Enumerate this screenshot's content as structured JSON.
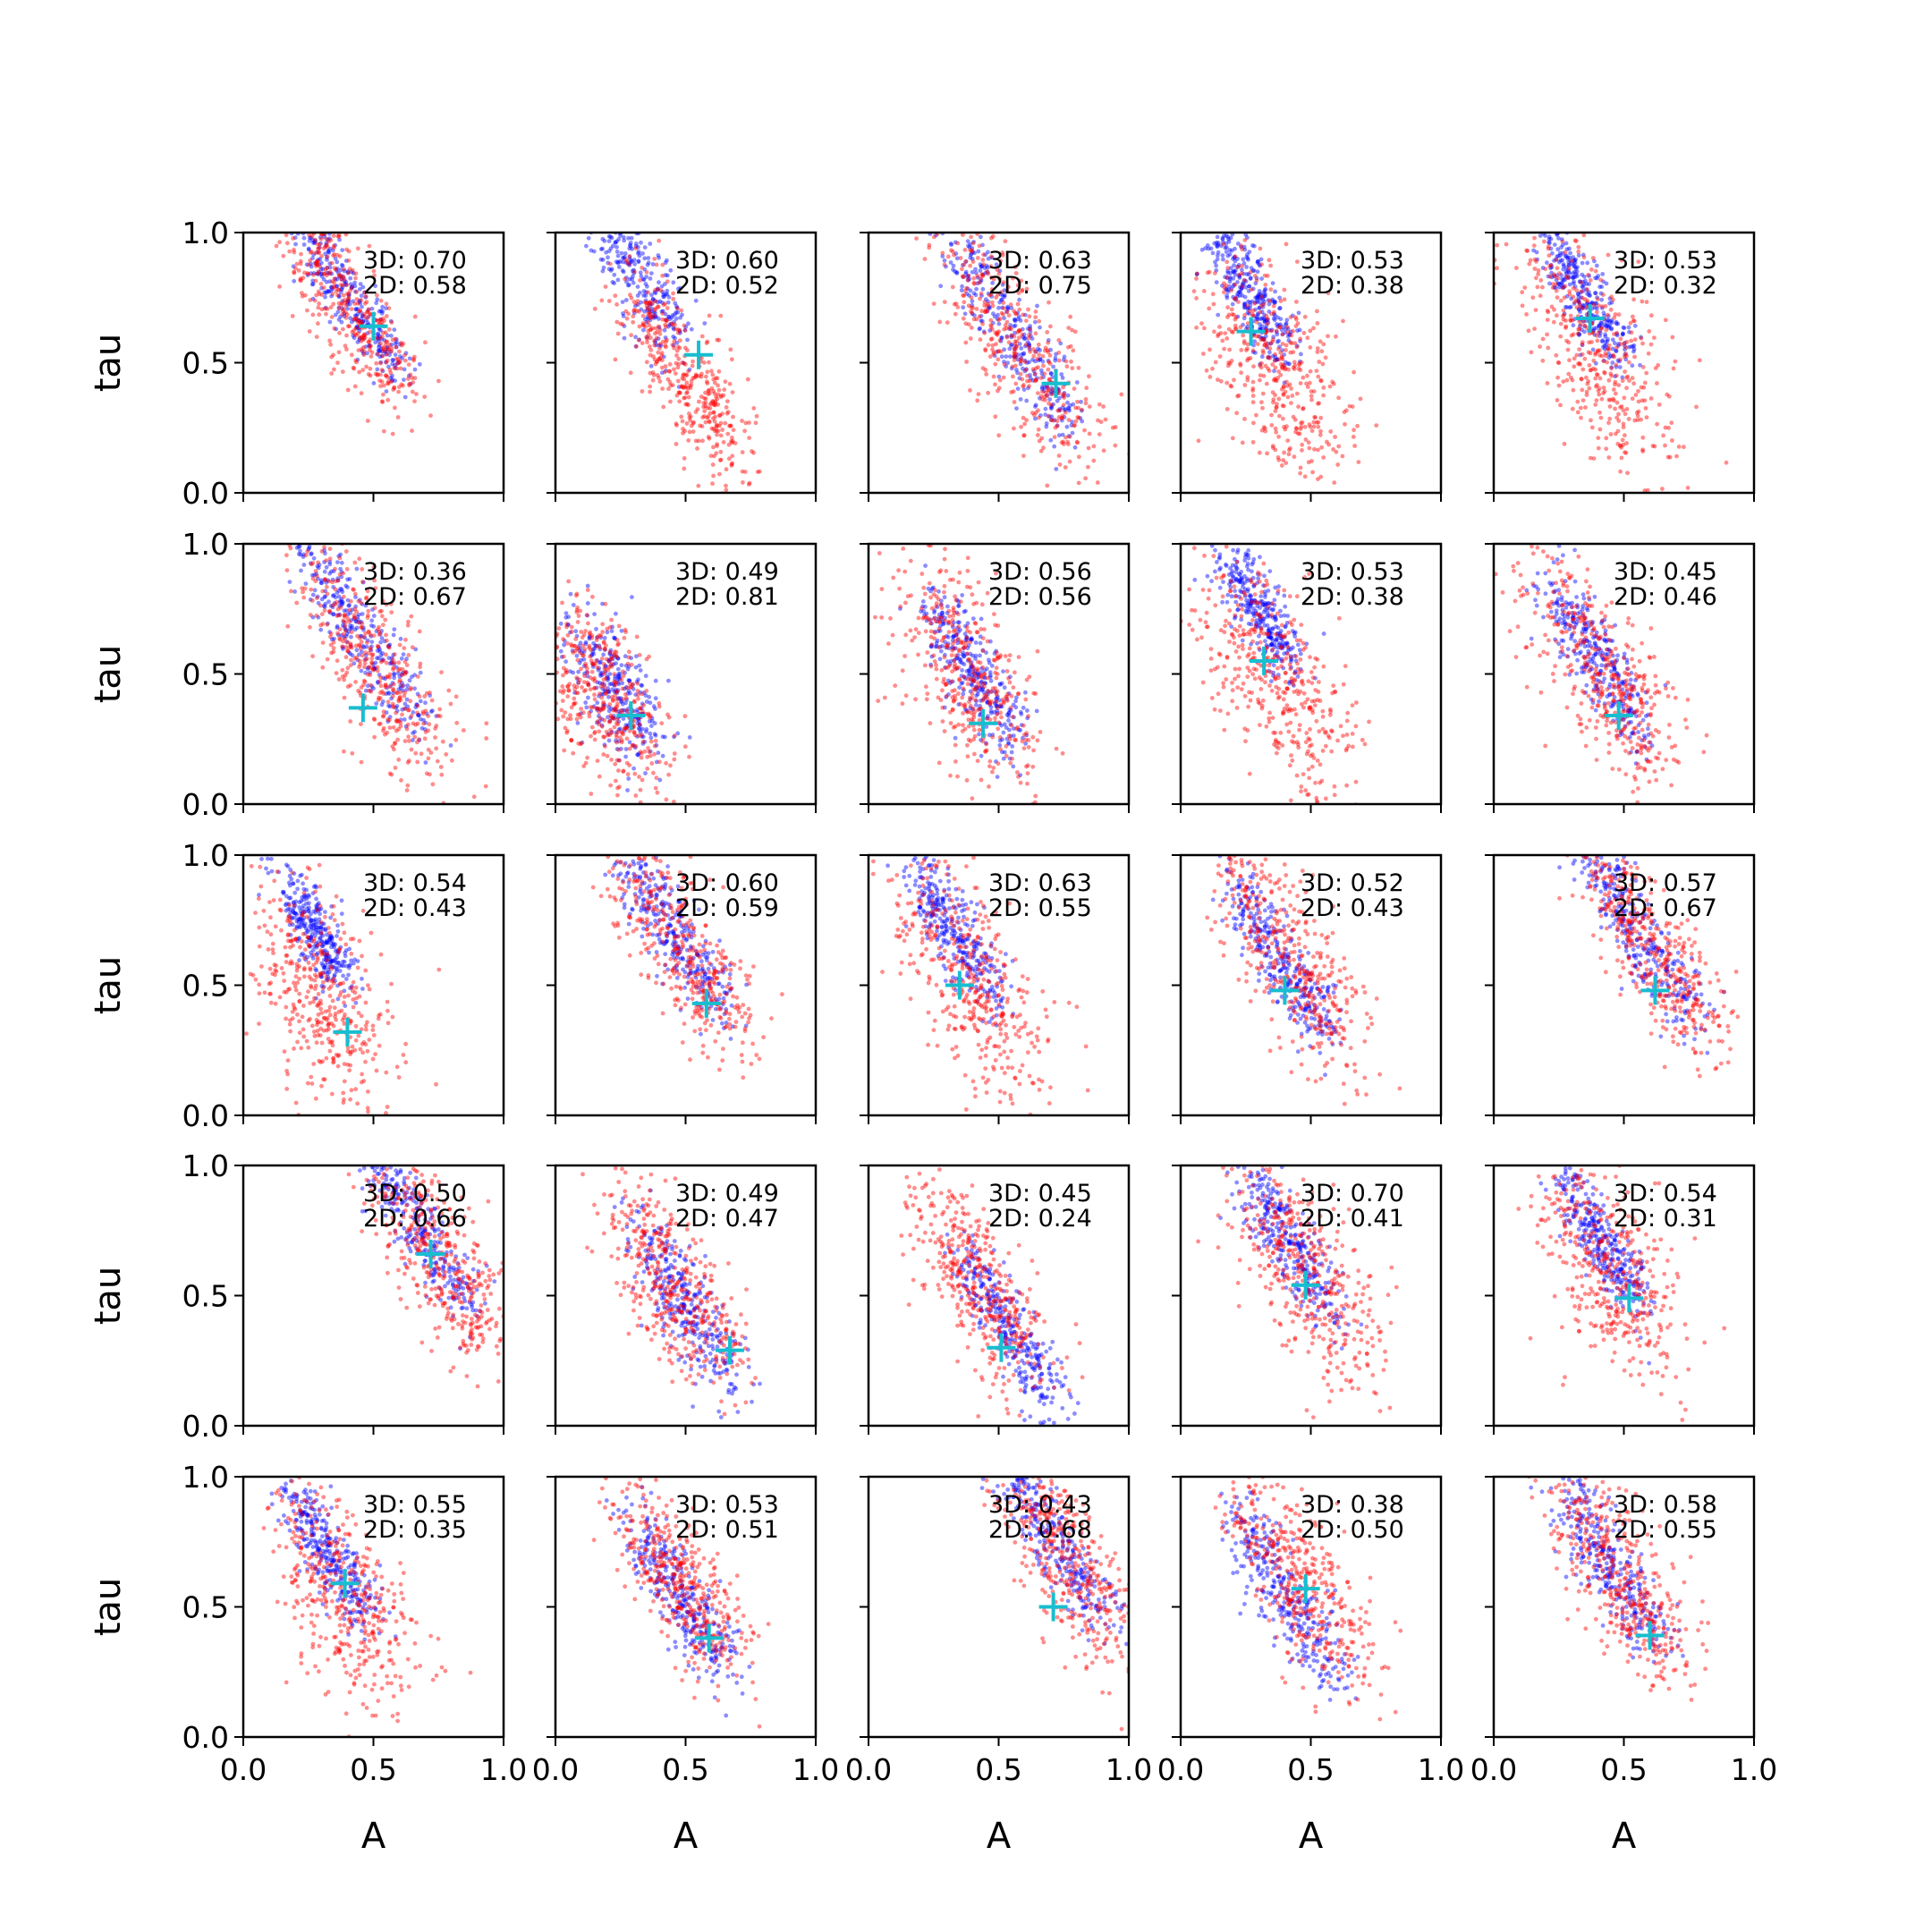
{
  "chart_data": {
    "type": "scatter",
    "layout": {
      "rows": 5,
      "cols": 5
    },
    "xlabel": "A",
    "ylabel": "tau",
    "xlim": [
      0,
      1
    ],
    "ylim": [
      0,
      1
    ],
    "x_ticks": [
      "0.0",
      "0.5",
      "1.0"
    ],
    "y_ticks": [
      "0.0",
      "0.5",
      "1.0"
    ],
    "colors": {
      "series_3d": "#0000ff",
      "series_2d": "#ff0000",
      "marker": "#17becf"
    },
    "panels": [
      {
        "ann": [
          "3D: 0.70",
          "2D: 0.58"
        ],
        "marker": [
          0.5,
          0.64
        ],
        "blue": {
          "a": 0.4,
          "t": 0.75,
          "k": 0.18,
          "sp": 0.06
        },
        "red": {
          "a": 0.42,
          "t": 0.7,
          "k": 0.2,
          "sp": 0.1
        }
      },
      {
        "ann": [
          "3D: 0.60",
          "2D: 0.52"
        ],
        "marker": [
          0.55,
          0.53
        ],
        "blue": {
          "a": 0.3,
          "t": 0.85,
          "k": 0.15,
          "sp": 0.08
        },
        "red": {
          "a": 0.5,
          "t": 0.45,
          "k": 0.18,
          "sp": 0.1
        }
      },
      {
        "ann": [
          "3D: 0.63",
          "2D: 0.75"
        ],
        "marker": [
          0.72,
          0.42
        ],
        "blue": {
          "a": 0.55,
          "t": 0.6,
          "k": 0.22,
          "sp": 0.07
        },
        "red": {
          "a": 0.58,
          "t": 0.55,
          "k": 0.25,
          "sp": 0.12
        }
      },
      {
        "ann": [
          "3D: 0.53",
          "2D: 0.38"
        ],
        "marker": [
          0.27,
          0.62
        ],
        "blue": {
          "a": 0.28,
          "t": 0.75,
          "k": 0.12,
          "sp": 0.06
        },
        "red": {
          "a": 0.35,
          "t": 0.5,
          "k": 0.15,
          "sp": 0.15
        }
      },
      {
        "ann": [
          "3D: 0.53",
          "2D: 0.32"
        ],
        "marker": [
          0.37,
          0.67
        ],
        "blue": {
          "a": 0.35,
          "t": 0.75,
          "k": 0.12,
          "sp": 0.06
        },
        "red": {
          "a": 0.4,
          "t": 0.55,
          "k": 0.15,
          "sp": 0.15
        }
      },
      {
        "ann": [
          "3D: 0.36",
          "2D: 0.67"
        ],
        "marker": [
          0.46,
          0.37
        ],
        "blue": {
          "a": 0.45,
          "t": 0.65,
          "k": 0.22,
          "sp": 0.07
        },
        "red": {
          "a": 0.5,
          "t": 0.55,
          "k": 0.22,
          "sp": 0.12
        }
      },
      {
        "ann": [
          "3D: 0.49",
          "2D: 0.81"
        ],
        "marker": [
          0.29,
          0.34
        ],
        "blue": {
          "a": 0.22,
          "t": 0.45,
          "k": 0.1,
          "sp": 0.09
        },
        "red": {
          "a": 0.2,
          "t": 0.4,
          "k": 0.1,
          "sp": 0.13
        }
      },
      {
        "ann": [
          "3D: 0.56",
          "2D: 0.56"
        ],
        "marker": [
          0.44,
          0.31
        ],
        "blue": {
          "a": 0.4,
          "t": 0.5,
          "k": 0.14,
          "sp": 0.07
        },
        "red": {
          "a": 0.38,
          "t": 0.5,
          "k": 0.14,
          "sp": 0.14
        }
      },
      {
        "ann": [
          "3D: 0.53",
          "2D: 0.38"
        ],
        "marker": [
          0.32,
          0.55
        ],
        "blue": {
          "a": 0.3,
          "t": 0.75,
          "k": 0.12,
          "sp": 0.06
        },
        "red": {
          "a": 0.35,
          "t": 0.5,
          "k": 0.15,
          "sp": 0.15
        }
      },
      {
        "ann": [
          "3D: 0.45",
          "2D: 0.46"
        ],
        "marker": [
          0.48,
          0.34
        ],
        "blue": {
          "a": 0.4,
          "t": 0.55,
          "k": 0.16,
          "sp": 0.07
        },
        "red": {
          "a": 0.42,
          "t": 0.5,
          "k": 0.18,
          "sp": 0.13
        }
      },
      {
        "ann": [
          "3D: 0.54",
          "2D: 0.43"
        ],
        "marker": [
          0.4,
          0.32
        ],
        "blue": {
          "a": 0.28,
          "t": 0.7,
          "k": 0.1,
          "sp": 0.06
        },
        "red": {
          "a": 0.3,
          "t": 0.45,
          "k": 0.12,
          "sp": 0.16
        }
      },
      {
        "ann": [
          "3D: 0.60",
          "2D: 0.59"
        ],
        "marker": [
          0.58,
          0.43
        ],
        "blue": {
          "a": 0.45,
          "t": 0.7,
          "k": 0.18,
          "sp": 0.07
        },
        "red": {
          "a": 0.48,
          "t": 0.65,
          "k": 0.2,
          "sp": 0.11
        }
      },
      {
        "ann": [
          "3D: 0.63",
          "2D: 0.55"
        ],
        "marker": [
          0.35,
          0.5
        ],
        "blue": {
          "a": 0.33,
          "t": 0.7,
          "k": 0.15,
          "sp": 0.07
        },
        "red": {
          "a": 0.38,
          "t": 0.55,
          "k": 0.18,
          "sp": 0.14
        }
      },
      {
        "ann": [
          "3D: 0.52",
          "2D: 0.43"
        ],
        "marker": [
          0.4,
          0.48
        ],
        "blue": {
          "a": 0.38,
          "t": 0.6,
          "k": 0.18,
          "sp": 0.07
        },
        "red": {
          "a": 0.42,
          "t": 0.6,
          "k": 0.2,
          "sp": 0.12
        }
      },
      {
        "ann": [
          "3D: 0.57",
          "2D: 0.67"
        ],
        "marker": [
          0.62,
          0.48
        ],
        "blue": {
          "a": 0.55,
          "t": 0.7,
          "k": 0.2,
          "sp": 0.07
        },
        "red": {
          "a": 0.6,
          "t": 0.65,
          "k": 0.22,
          "sp": 0.1
        }
      },
      {
        "ann": [
          "3D: 0.50",
          "2D: 0.66"
        ],
        "marker": [
          0.72,
          0.66
        ],
        "blue": {
          "a": 0.68,
          "t": 0.75,
          "k": 0.2,
          "sp": 0.06
        },
        "red": {
          "a": 0.75,
          "t": 0.65,
          "k": 0.2,
          "sp": 0.12
        }
      },
      {
        "ann": [
          "3D: 0.49",
          "2D: 0.47"
        ],
        "marker": [
          0.67,
          0.29
        ],
        "blue": {
          "a": 0.5,
          "t": 0.45,
          "k": 0.15,
          "sp": 0.08
        },
        "red": {
          "a": 0.45,
          "t": 0.55,
          "k": 0.15,
          "sp": 0.12
        }
      },
      {
        "ann": [
          "3D: 0.45",
          "2D: 0.24"
        ],
        "marker": [
          0.51,
          0.3
        ],
        "blue": {
          "a": 0.55,
          "t": 0.35,
          "k": 0.16,
          "sp": 0.07
        },
        "red": {
          "a": 0.42,
          "t": 0.55,
          "k": 0.16,
          "sp": 0.12
        }
      },
      {
        "ann": [
          "3D: 0.70",
          "2D: 0.41"
        ],
        "marker": [
          0.48,
          0.54
        ],
        "blue": {
          "a": 0.42,
          "t": 0.7,
          "k": 0.16,
          "sp": 0.07
        },
        "red": {
          "a": 0.48,
          "t": 0.6,
          "k": 0.18,
          "sp": 0.13
        }
      },
      {
        "ann": [
          "3D: 0.54",
          "2D: 0.31"
        ],
        "marker": [
          0.52,
          0.49
        ],
        "blue": {
          "a": 0.42,
          "t": 0.7,
          "k": 0.14,
          "sp": 0.06
        },
        "red": {
          "a": 0.45,
          "t": 0.6,
          "k": 0.14,
          "sp": 0.15
        }
      },
      {
        "ann": [
          "3D: 0.55",
          "2D: 0.35"
        ],
        "marker": [
          0.39,
          0.59
        ],
        "blue": {
          "a": 0.33,
          "t": 0.7,
          "k": 0.14,
          "sp": 0.06
        },
        "red": {
          "a": 0.38,
          "t": 0.55,
          "k": 0.15,
          "sp": 0.15
        }
      },
      {
        "ann": [
          "3D: 0.53",
          "2D: 0.51"
        ],
        "marker": [
          0.59,
          0.38
        ],
        "blue": {
          "a": 0.48,
          "t": 0.55,
          "k": 0.16,
          "sp": 0.07
        },
        "red": {
          "a": 0.48,
          "t": 0.6,
          "k": 0.16,
          "sp": 0.11
        }
      },
      {
        "ann": [
          "3D: 0.43",
          "2D: 0.68"
        ],
        "marker": [
          0.71,
          0.5
        ],
        "blue": {
          "a": 0.72,
          "t": 0.75,
          "k": 0.2,
          "sp": 0.07
        },
        "red": {
          "a": 0.78,
          "t": 0.65,
          "k": 0.18,
          "sp": 0.12
        }
      },
      {
        "ann": [
          "3D: 0.38",
          "2D: 0.50"
        ],
        "marker": [
          0.48,
          0.57
        ],
        "blue": {
          "a": 0.4,
          "t": 0.55,
          "k": 0.18,
          "sp": 0.08
        },
        "red": {
          "a": 0.45,
          "t": 0.6,
          "k": 0.18,
          "sp": 0.12
        }
      },
      {
        "ann": [
          "3D: 0.58",
          "2D: 0.55"
        ],
        "marker": [
          0.6,
          0.39
        ],
        "blue": {
          "a": 0.45,
          "t": 0.65,
          "k": 0.18,
          "sp": 0.07
        },
        "red": {
          "a": 0.48,
          "t": 0.6,
          "k": 0.18,
          "sp": 0.12
        }
      }
    ]
  }
}
